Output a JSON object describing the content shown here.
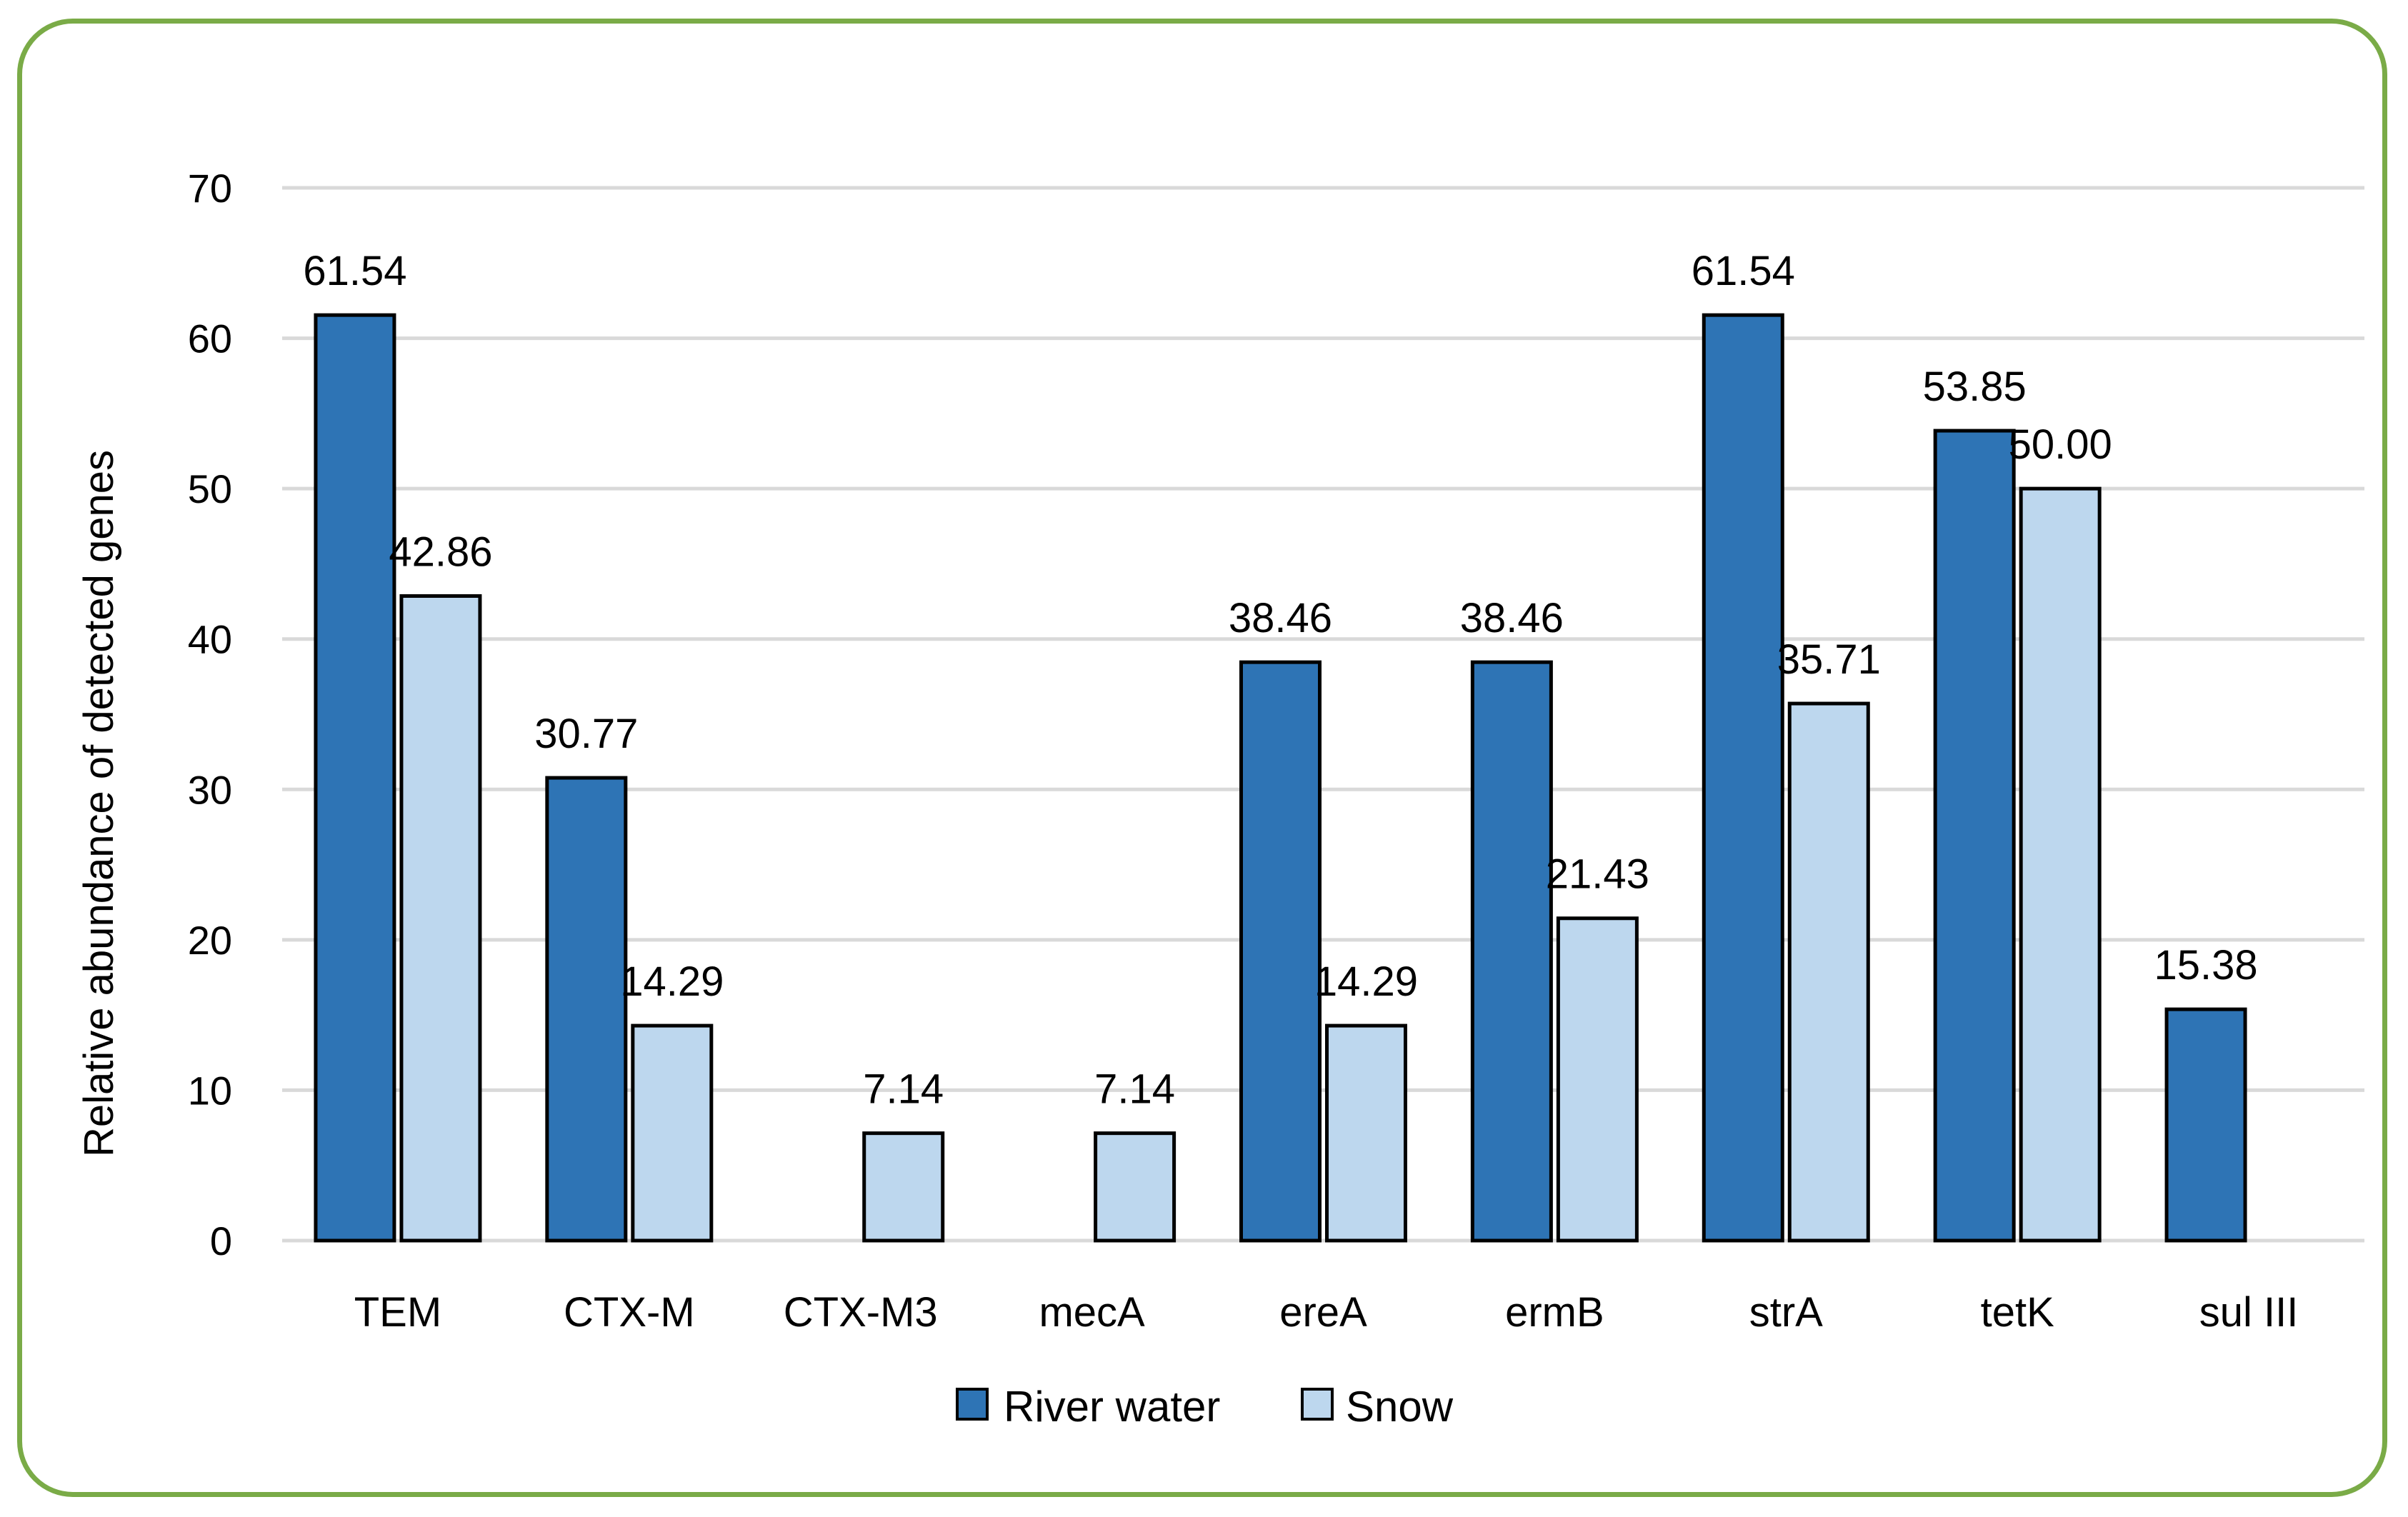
{
  "chart_data": {
    "type": "bar",
    "title": "",
    "xlabel": "",
    "ylabel": "Relative abundance of detected genes",
    "ylim": [
      0,
      70
    ],
    "yticks": [
      0,
      10,
      20,
      30,
      40,
      50,
      60,
      70
    ],
    "grid": true,
    "legend_position": "bottom",
    "categories": [
      "TEM",
      "CTX-M",
      "CTX-M3",
      "mecA",
      "ereA",
      "ermB",
      "strA",
      "tetK",
      "sul III"
    ],
    "series": [
      {
        "name": "River water",
        "color": "#2e74b5",
        "values": [
          61.54,
          30.77,
          0,
          0,
          38.46,
          38.46,
          61.54,
          53.85,
          15.38
        ],
        "labels": [
          "61.54",
          "30.77",
          "",
          "",
          "38.46",
          "38.46",
          "61.54",
          "53.85",
          "15.38"
        ]
      },
      {
        "name": "Snow",
        "color": "#bdd7ee",
        "values": [
          42.86,
          14.29,
          7.14,
          7.14,
          14.29,
          21.43,
          35.71,
          50.0,
          0
        ],
        "labels": [
          "42.86",
          "14.29",
          "7.14",
          "7.14",
          "14.29",
          "21.43",
          "35.71",
          "50.00",
          ""
        ]
      }
    ]
  }
}
